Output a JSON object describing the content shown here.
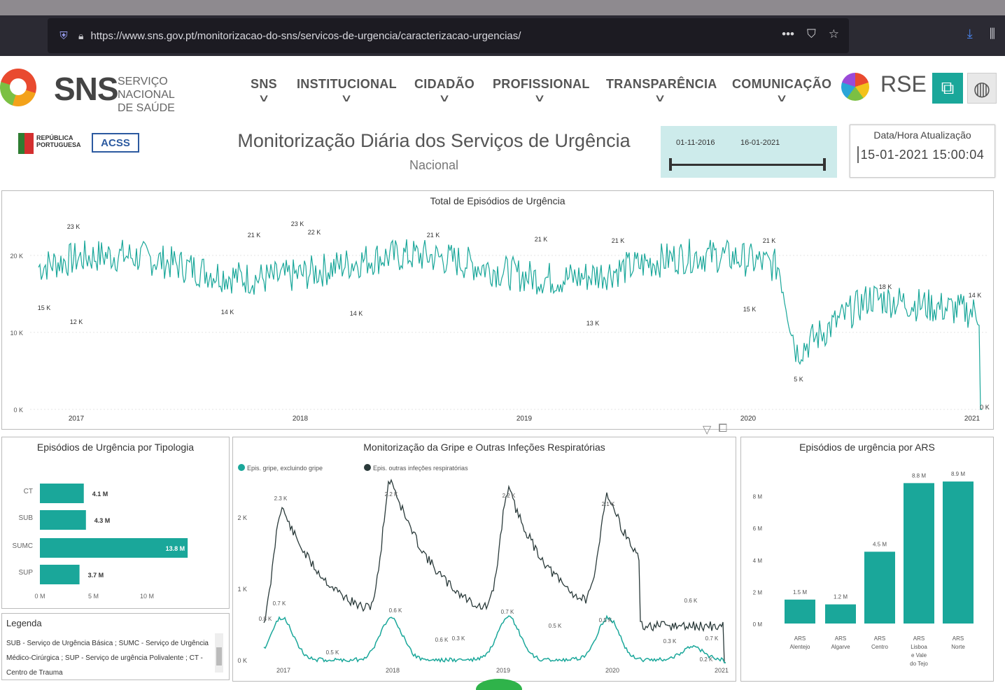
{
  "browser": {
    "url": "https://www.sns.gov.pt/monitorizacao-do-sns/servicos-de-urgencia/caracterizacao-urgencias/",
    "icons": [
      "shield-icon",
      "lock-icon",
      "more-icon",
      "pocket-icon",
      "star-icon",
      "download-icon",
      "library-icon"
    ]
  },
  "site": {
    "brand": "SNS",
    "brand_sub_1": "SERVIÇO NACIONAL",
    "brand_sub_2": "DE SAÚDE",
    "nav": [
      "SNS",
      "INSTITUCIONAL",
      "CIDADÃO",
      "PROFISSIONAL",
      "TRANSPARÊNCIA",
      "COMUNICAÇÃO"
    ],
    "rse": "RSE"
  },
  "report": {
    "republica": "REPÚBLICA PORTUGUESA",
    "acss": "ACSS",
    "title": "Monitorização Diária dos Serviços de Urgência",
    "subtitle": "Nacional",
    "date_from": "01-11-2016",
    "date_to": "16-01-2021",
    "update_label": "Data/Hora Atualização",
    "update_value": "15-01-2021 15:00:04"
  },
  "legend_panel": {
    "title": "Legenda",
    "text": "SUB - Serviço de Urgência Básica ; SUMC - Serviço de Urgência Médico-Cirúrgica ; SUP - Serviço de urgência Polivalente ; CT - Centro de Trauma"
  },
  "chart_data": [
    {
      "type": "line",
      "title": "Total de Episódios de Urgência",
      "x_ticks": [
        "2017",
        "2018",
        "2019",
        "2020",
        "2021"
      ],
      "y_ticks": [
        "20 K",
        "10 K",
        "0 K"
      ],
      "ylim": [
        0,
        25000
      ],
      "color": "#1aa79a",
      "labels": [
        "23 K",
        "15 K",
        "12 K",
        "14 K",
        "21 K",
        "23 K",
        "22 K",
        "14 K",
        "21 K",
        "21 K",
        "13 K",
        "21 K",
        "21 K",
        "15 K",
        "5 K",
        "18 K",
        "14 K",
        "0 K"
      ]
    },
    {
      "type": "bar",
      "title": "Episódios de Urgência por Tipologia",
      "categories": [
        "CT",
        "SUB",
        "SUMC",
        "SUP"
      ],
      "values": [
        4.1,
        4.3,
        13.8,
        3.7
      ],
      "value_labels": [
        "4.1 M",
        "4.3 M",
        "13.8 M",
        "3.7 M"
      ],
      "x_ticks": [
        "0 M",
        "5 M",
        "10 M"
      ],
      "color": "#1aa79a"
    },
    {
      "type": "line",
      "title": "Monitorização da Gripe e Outras Infeções Respiratórias",
      "series": [
        {
          "name": "Epis. gripe, excluindo gripe",
          "color": "#1aa79a"
        },
        {
          "name": "Epis. outras infeções respiratórias",
          "color": "#2a3a3a"
        }
      ],
      "x_ticks": [
        "2017",
        "2018",
        "2019",
        "2020",
        "2021"
      ],
      "y_ticks": [
        "2 K",
        "1 K",
        "0 K"
      ],
      "labels": [
        "2.3 K",
        "2.2 K",
        "2.2 K",
        "2.1 K",
        "0.7 K",
        "0.8 K",
        "0.6 K",
        "0.5 K",
        "0.7 K",
        "0.6 K",
        "0.5 K",
        "0.3 K",
        "0.5 K",
        "0.3 K",
        "0.6 K",
        "0.7 K",
        "0.2 K"
      ]
    },
    {
      "type": "bar",
      "title": "Episódios de urgência por ARS",
      "categories": [
        "ARS Alentejo",
        "ARS Algarve",
        "ARS Centro",
        "ARS Lisboa e Vale do Tejo",
        "ARS Norte"
      ],
      "values": [
        1.5,
        1.2,
        4.5,
        8.8,
        8.9
      ],
      "value_labels": [
        "1.5 M",
        "1.2 M",
        "4.5 M",
        "8.8 M",
        "8.9 M"
      ],
      "y_ticks": [
        "8 M",
        "6 M",
        "4 M",
        "2 M",
        "0 M"
      ],
      "ylim": [
        0,
        10
      ],
      "color": "#1aa79a"
    }
  ]
}
